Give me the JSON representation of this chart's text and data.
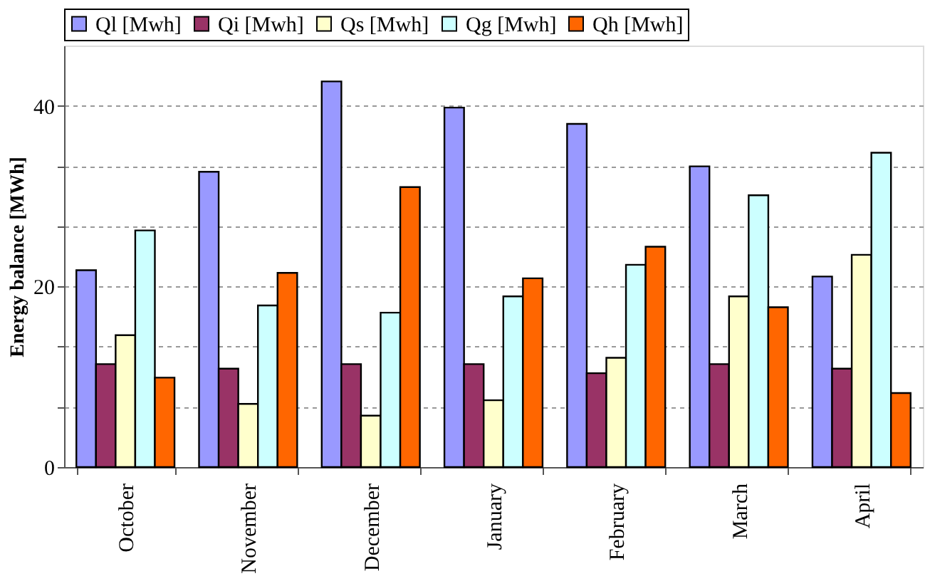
{
  "chart_data": {
    "type": "bar",
    "ylabel": "Energy balance [MWh]",
    "categories": [
      "October",
      "November",
      "December",
      "January",
      "February",
      "March",
      "April"
    ],
    "series": [
      {
        "name": "Ql [Mwh]",
        "color": "#9999ff",
        "values": [
          21.8,
          32.7,
          42.7,
          39.8,
          38.0,
          33.3,
          21.1
        ]
      },
      {
        "name": "Qi [Mwh]",
        "color": "#993366",
        "values": [
          11.4,
          10.9,
          11.4,
          11.4,
          10.4,
          11.4,
          10.9
        ]
      },
      {
        "name": "Qs [Mwh]",
        "color": "#ffffcc",
        "values": [
          14.6,
          7.0,
          5.7,
          7.4,
          12.1,
          18.9,
          23.5
        ]
      },
      {
        "name": "Qg [Mwh]",
        "color": "#ccffff",
        "values": [
          26.2,
          17.9,
          17.1,
          18.9,
          22.4,
          30.1,
          34.8
        ]
      },
      {
        "name": "Qh [Mwh]",
        "color": "#ff6600",
        "values": [
          9.9,
          21.5,
          31.0,
          20.9,
          24.4,
          17.7,
          8.2
        ]
      }
    ],
    "ylim": [
      0,
      46.67
    ],
    "yticks": [
      0,
      {
        "value": 6.67,
        "label": null
      },
      {
        "value": 13.33,
        "label": null
      },
      20,
      {
        "value": 26.67,
        "label": null
      },
      {
        "value": 33.33,
        "label": null
      },
      40
    ],
    "grid": "y",
    "legend": "top"
  }
}
